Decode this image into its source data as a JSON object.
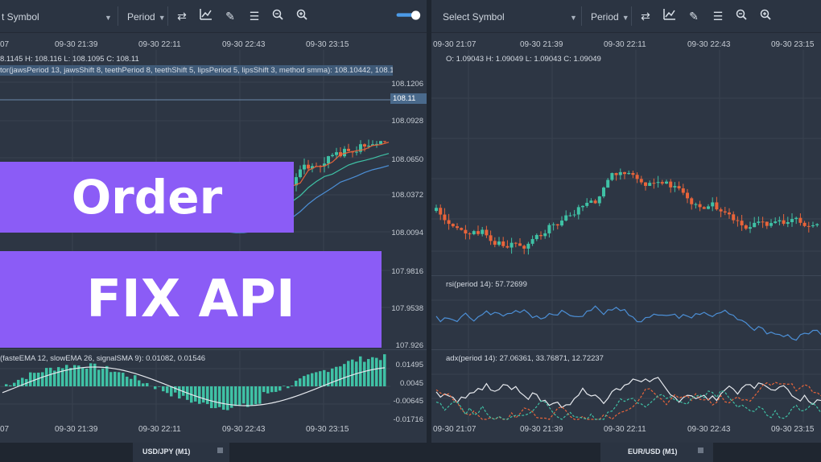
{
  "left": {
    "symbol": "t Symbol",
    "period": "Period",
    "time_labels_top": [
      "07",
      "09-30 21:39",
      "09-30 22:11",
      "09-30 22:43",
      "09-30 23:15"
    ],
    "time_labels_bottom": [
      "07",
      "09-30 21:39",
      "09-30 22:11",
      "09-30 22:43",
      "09-30 23:15"
    ],
    "ohlc": "8.1145 H: 108.116 L: 108.1095 C: 108.11",
    "alligator": "tor(jawsPeriod 13, jawsShift 8, teethPeriod 8, teethShift 5, lipsPeriod 5, lipsShift 3, method smma): 108.10442, 108.11325, 108",
    "price_labels": [
      "108.1206",
      "108.11",
      "108.0928",
      "108.0650",
      "108.0372",
      "108.0094",
      "107.9816",
      "107.9538",
      "107.926"
    ],
    "macd": "(fasteEMA 12, slowEMA 26, signalSMA 9): 0.01082, 0.01546",
    "macd_labels": [
      "0.01495",
      "0.0045",
      "-0.00645",
      "-0.01716"
    ],
    "footer_tab": "USD/JPY (M1)"
  },
  "right": {
    "symbol": "Select Symbol",
    "period": "Period",
    "time_labels_top": [
      "09-30 21:07",
      "09-30 21:39",
      "09-30 22:11",
      "09-30 22:43",
      "09-30 23:15"
    ],
    "time_labels_bottom": [
      "09-30 21:07",
      "09-30 21:39",
      "09-30 22:11",
      "09-30 22:43",
      "09-30 23:15"
    ],
    "ohlc": "O: 1.09043 H: 1.09049 L: 1.09043 C: 1.09049",
    "rsi": "rsi(period 14): 57.72699",
    "adx": "adx(period 14): 27.06361, 33.76871, 12.72237",
    "footer_tab": "EUR/USD (M1)"
  },
  "banner": {
    "line1": "Order",
    "line2": "FIX API"
  },
  "colors": {
    "up": "#3fc1a5",
    "down": "#e8643a",
    "accent": "#8b5cf6",
    "bg": "#2d3644"
  },
  "icons": [
    "swap-icon",
    "chart-icon",
    "pencil-icon",
    "indicators-icon",
    "zoom-out-icon",
    "zoom-in-icon"
  ]
}
